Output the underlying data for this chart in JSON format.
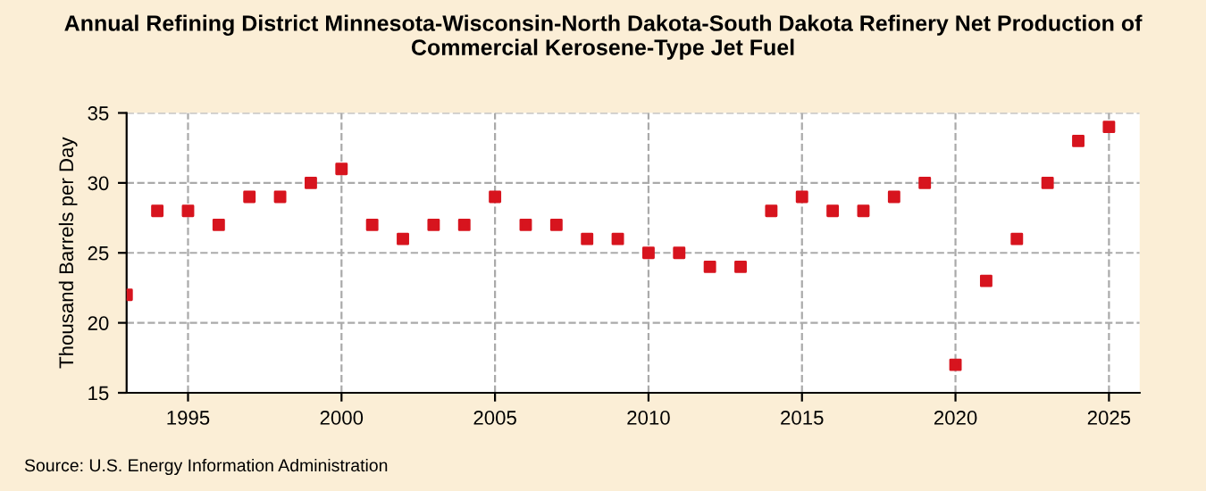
{
  "chart_data": {
    "type": "scatter",
    "title": "Annual Refining District Minnesota-Wisconsin-North Dakota-South Dakota Refinery Net Production of Commercial Kerosene-Type Jet Fuel",
    "ylabel": "Thousand Barrels per Day",
    "x": [
      1993,
      1994,
      1995,
      1996,
      1997,
      1998,
      1999,
      2000,
      2001,
      2002,
      2003,
      2004,
      2005,
      2006,
      2007,
      2008,
      2009,
      2010,
      2011,
      2012,
      2013,
      2014,
      2015,
      2016,
      2017,
      2018,
      2019,
      2020,
      2021,
      2022,
      2023,
      2024,
      2025
    ],
    "series": [
      {
        "color": "#d7141e",
        "values": [
          22,
          28,
          28,
          27,
          29,
          29,
          30,
          31,
          27,
          26,
          27,
          27,
          29,
          27,
          27,
          26,
          26,
          25,
          25,
          24,
          24,
          28,
          29,
          28,
          28,
          29,
          30,
          17,
          23,
          26,
          30,
          33,
          34
        ]
      }
    ],
    "xlim": [
      1993,
      2026
    ],
    "xticks": [
      1995,
      2000,
      2005,
      2010,
      2015,
      2020,
      2025
    ],
    "ylim": [
      15,
      35
    ],
    "yticks": [
      15,
      20,
      25,
      30,
      35
    ],
    "grid": true,
    "marker": "square",
    "annotations": [
      "Source: U.S. Energy Information Administration"
    ]
  }
}
